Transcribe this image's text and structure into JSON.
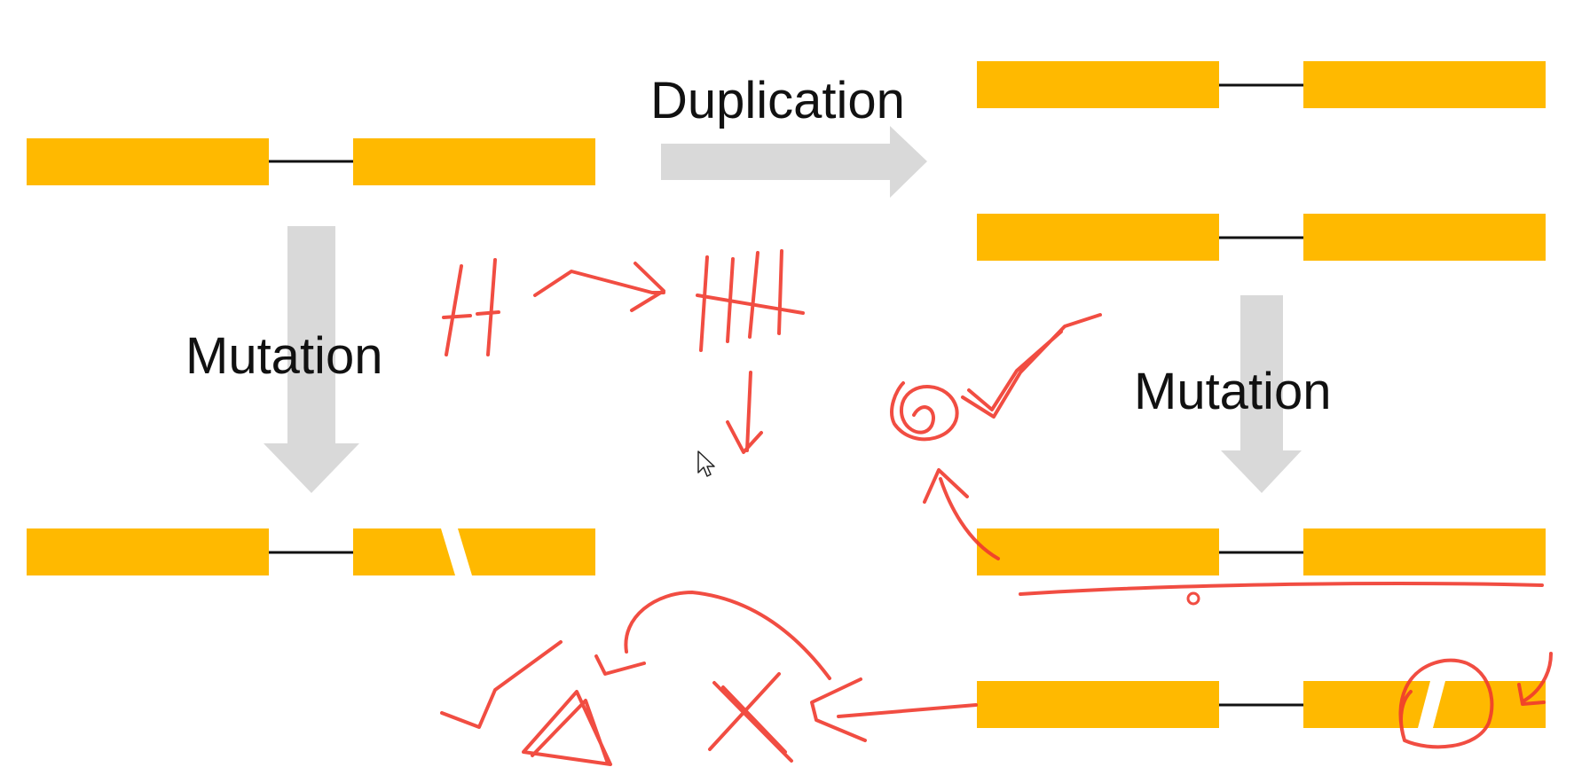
{
  "labels": {
    "duplication": "Duplication",
    "mutation_left": "Mutation",
    "mutation_right": "Mutation"
  },
  "colors": {
    "exon": "#FFB900",
    "intron": "#111111",
    "arrow": "#D9D9D9",
    "ink": "#F03A2E",
    "background": "#FFFFFF"
  },
  "icons": {
    "cursor": "mouse-pointer-icon"
  }
}
